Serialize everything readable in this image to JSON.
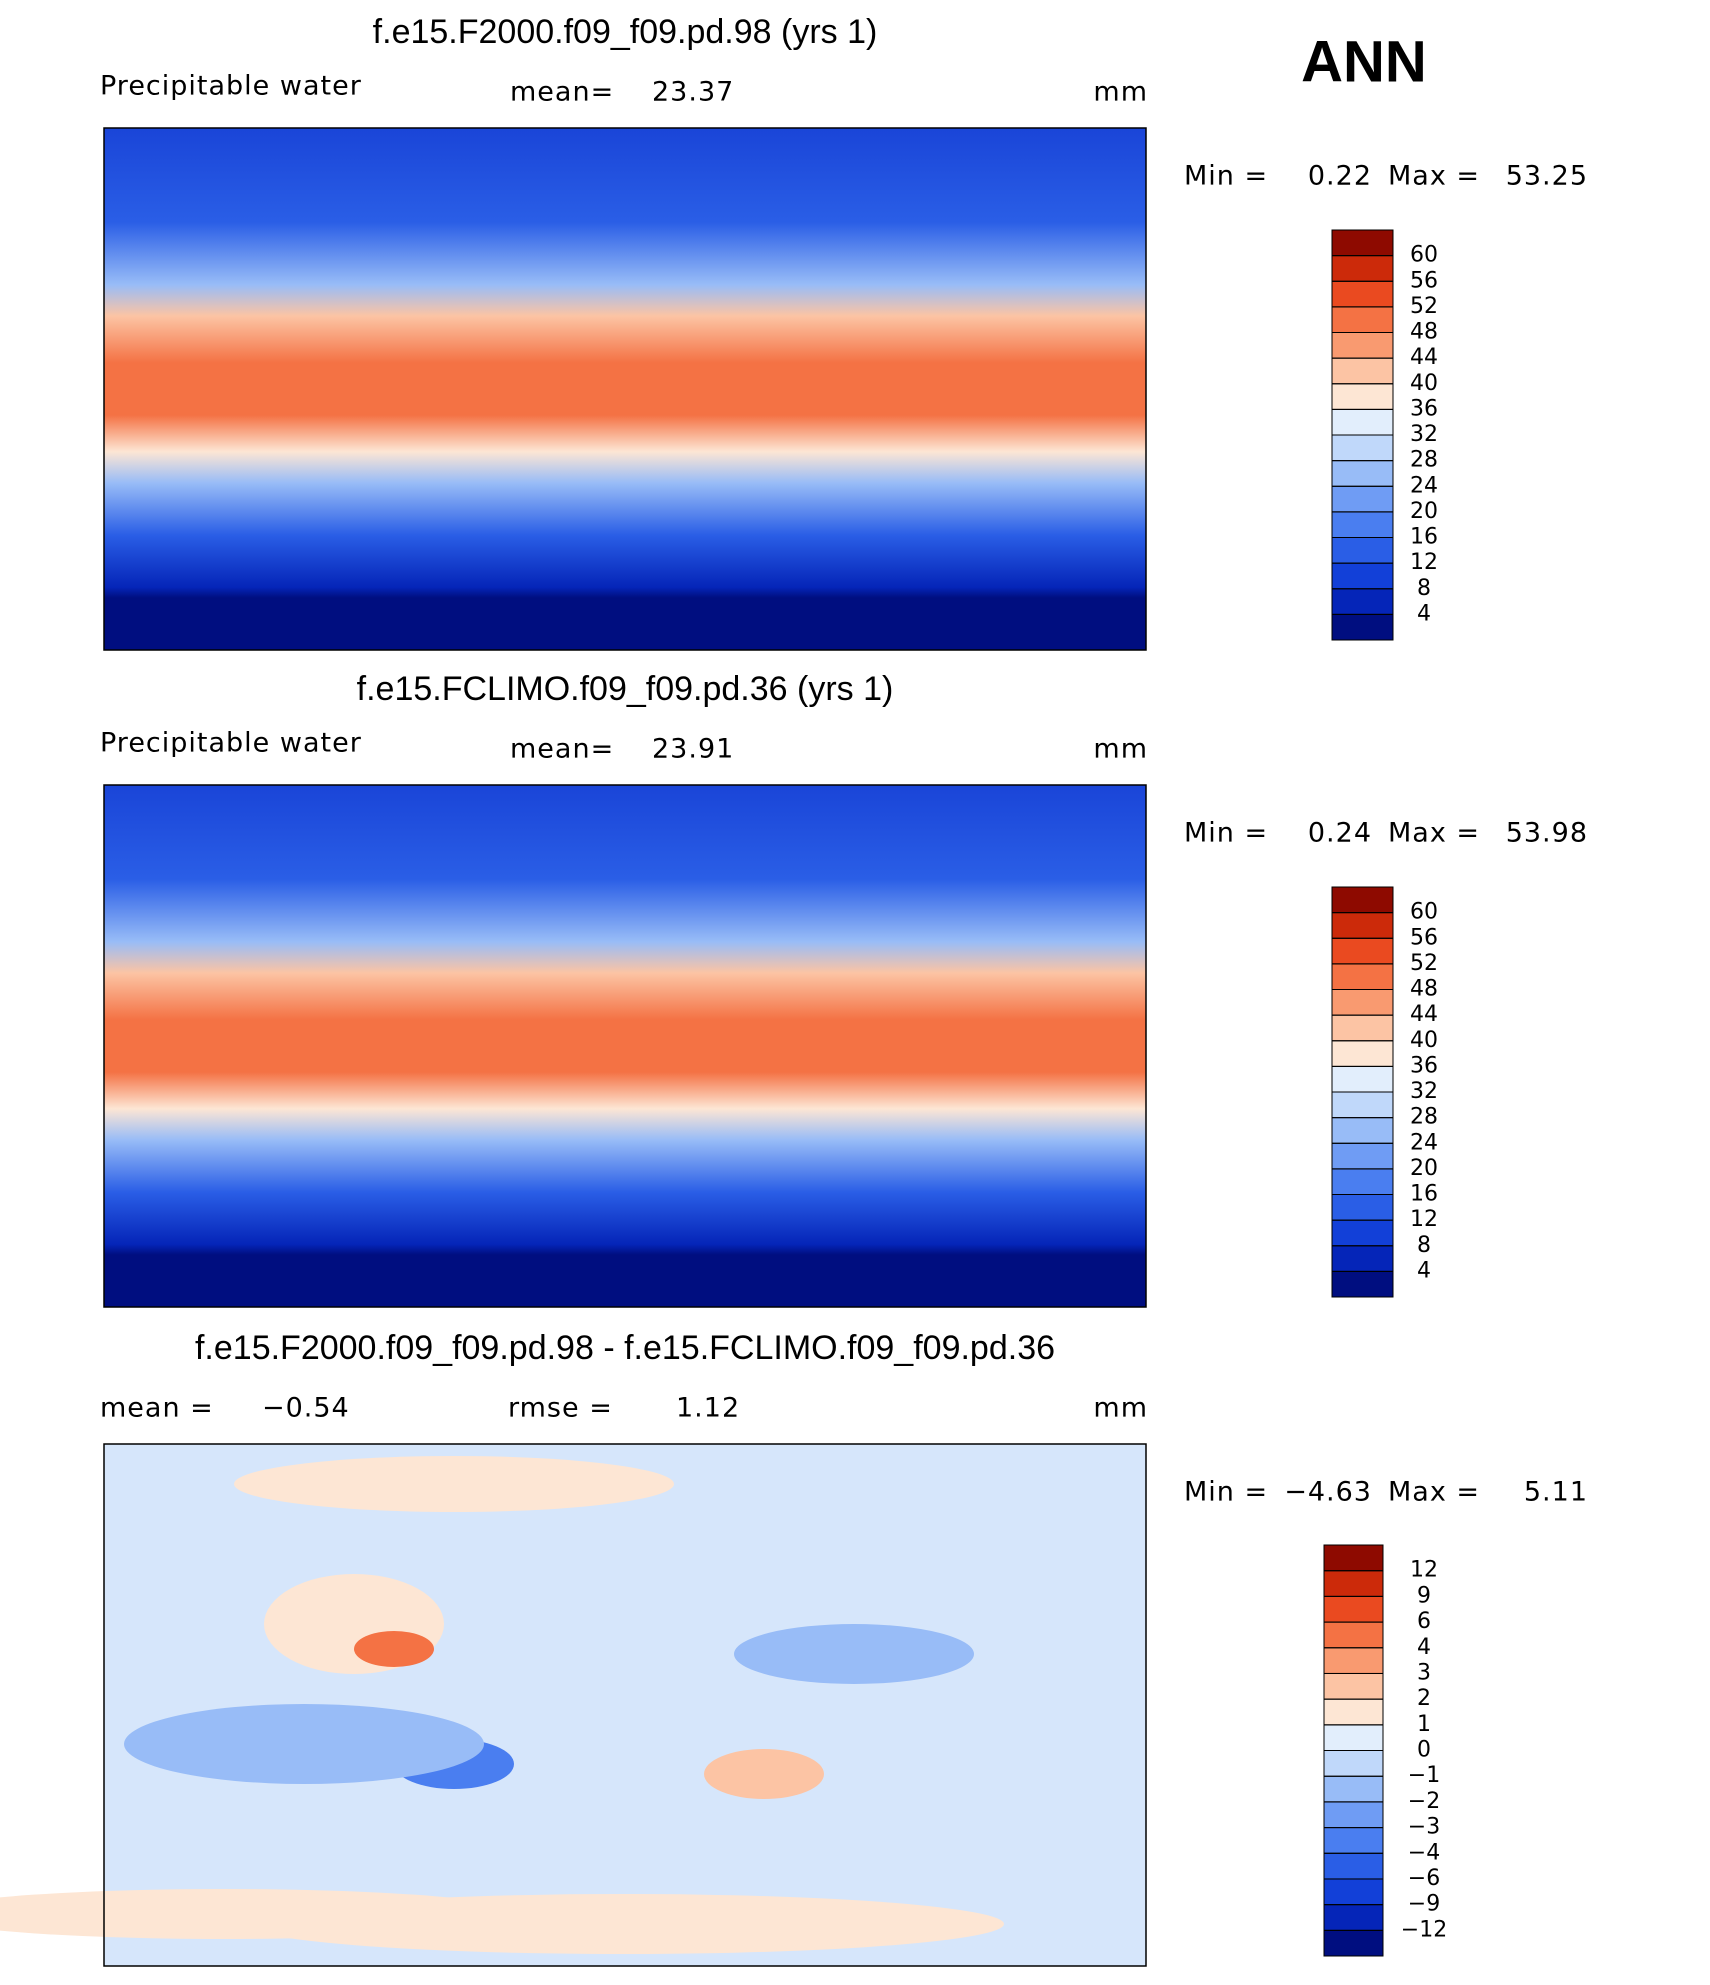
{
  "season": "ANN",
  "panels": [
    {
      "title": "f.e15.F2000.f09_f09.pd.98 (yrs 1)",
      "variable": "Precipitable water",
      "stats": [
        {
          "label": "mean=",
          "value": "23.37"
        }
      ],
      "units": "mm",
      "min_label": "Min =",
      "min": "0.22",
      "max_label": "Max =",
      "max": "53.25",
      "colorbar": {
        "levels": [
          4,
          8,
          12,
          16,
          20,
          24,
          28,
          32,
          36,
          40,
          44,
          48,
          52,
          56,
          60
        ],
        "colors": [
          "#000e80",
          "#0525b8",
          "#1240d8",
          "#2a5ee6",
          "#4a7ef0",
          "#6f9cf4",
          "#98bcf7",
          "#c0d8fa",
          "#e2eefc",
          "#fde6d4",
          "#fcc4a4",
          "#f99a70",
          "#f47244",
          "#ea4a20",
          "#cc2a0a",
          "#8e0a00"
        ]
      }
    },
    {
      "title": "f.e15.FCLIMO.f09_f09.pd.36 (yrs 1)",
      "variable": "Precipitable water",
      "stats": [
        {
          "label": "mean=",
          "value": "23.91"
        }
      ],
      "units": "mm",
      "min_label": "Min =",
      "min": "0.24",
      "max_label": "Max =",
      "max": "53.98",
      "colorbar": {
        "levels": [
          4,
          8,
          12,
          16,
          20,
          24,
          28,
          32,
          36,
          40,
          44,
          48,
          52,
          56,
          60
        ],
        "colors": [
          "#000e80",
          "#0525b8",
          "#1240d8",
          "#2a5ee6",
          "#4a7ef0",
          "#6f9cf4",
          "#98bcf7",
          "#c0d8fa",
          "#e2eefc",
          "#fde6d4",
          "#fcc4a4",
          "#f99a70",
          "#f47244",
          "#ea4a20",
          "#cc2a0a",
          "#8e0a00"
        ]
      }
    },
    {
      "title": "f.e15.F2000.f09_f09.pd.98 - f.e15.FCLIMO.f09_f09.pd.36",
      "stats": [
        {
          "label": "mean =",
          "value": "−0.54"
        },
        {
          "label": "rmse =",
          "value": "1.12"
        }
      ],
      "units": "mm",
      "min_label": "Min =",
      "min": "−4.63",
      "max_label": "Max =",
      "max": "5.11",
      "colorbar": {
        "levels": [
          {
            "value": -12,
            "label": "−12"
          },
          {
            "value": -9,
            "label": "−9"
          },
          {
            "value": -6,
            "label": "−6"
          },
          {
            "value": -4,
            "label": "−4"
          },
          {
            "value": -3,
            "label": "−3"
          },
          {
            "value": -2,
            "label": "−2"
          },
          {
            "value": -1,
            "label": "−1"
          },
          0,
          1,
          2,
          3,
          4,
          6,
          9,
          12
        ],
        "colors": [
          "#000e80",
          "#0525b8",
          "#1240d8",
          "#2a5ee6",
          "#4a7ef0",
          "#6f9cf4",
          "#98bcf7",
          "#c0d8fa",
          "#e2eefc",
          "#fde6d4",
          "#fcc4a4",
          "#f99a70",
          "#f47244",
          "#ea4a20",
          "#cc2a0a",
          "#8e0a00"
        ]
      }
    }
  ]
}
